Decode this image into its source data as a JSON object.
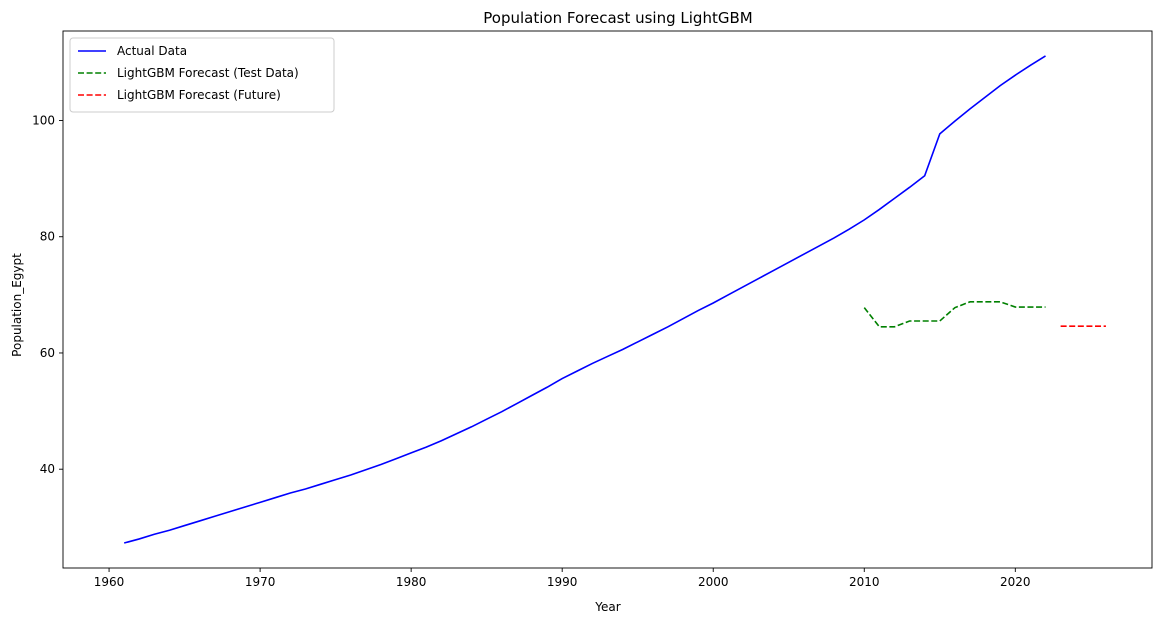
{
  "chart_data": {
    "type": "line",
    "title": "Population Forecast using LightGBM",
    "xlabel": "Year",
    "ylabel": "Population_Egypt",
    "xlim": [
      1956.95,
      2029.05
    ],
    "ylim": [
      23.0,
      115.4
    ],
    "xticks": [
      1960,
      1970,
      1980,
      1990,
      2000,
      2010,
      2020
    ],
    "yticks": [
      40,
      60,
      80,
      100
    ],
    "grid": false,
    "legend_position": "top-left",
    "series": [
      {
        "name": "Actual Data",
        "color": "#0000ff",
        "style": "solid",
        "x": [
          1961,
          1962,
          1963,
          1964,
          1965,
          1966,
          1967,
          1968,
          1969,
          1970,
          1971,
          1972,
          1973,
          1974,
          1975,
          1976,
          1977,
          1978,
          1979,
          1980,
          1981,
          1982,
          1983,
          1984,
          1985,
          1986,
          1987,
          1988,
          1989,
          1990,
          1991,
          1992,
          1993,
          1994,
          1995,
          1996,
          1997,
          1998,
          1999,
          2000,
          2001,
          2002,
          2003,
          2004,
          2005,
          2006,
          2007,
          2008,
          2009,
          2010,
          2011,
          2012,
          2013,
          2014,
          2015,
          2016,
          2017,
          2018,
          2019,
          2020,
          2021,
          2022
        ],
        "y": [
          27.3,
          28.0,
          28.8,
          29.5,
          30.3,
          31.1,
          31.9,
          32.7,
          33.5,
          34.3,
          35.1,
          35.9,
          36.6,
          37.4,
          38.2,
          39.0,
          39.9,
          40.8,
          41.8,
          42.8,
          43.8,
          44.9,
          46.1,
          47.3,
          48.6,
          49.9,
          51.3,
          52.7,
          54.1,
          55.6,
          56.9,
          58.2,
          59.4,
          60.6,
          61.9,
          63.2,
          64.5,
          65.9,
          67.3,
          68.6,
          70.0,
          71.4,
          72.8,
          74.2,
          75.6,
          77.0,
          78.4,
          79.8,
          81.3,
          82.9,
          84.7,
          86.6,
          88.5,
          90.5,
          97.7,
          99.9,
          102.0,
          104.0,
          106.0,
          107.8,
          109.5,
          111.1
        ]
      },
      {
        "name": "LightGBM Forecast (Test Data)",
        "color": "#008000",
        "style": "dashed",
        "x": [
          2010,
          2011,
          2012,
          2013,
          2014,
          2015,
          2016,
          2017,
          2018,
          2019,
          2020,
          2021,
          2022
        ],
        "y": [
          67.8,
          64.5,
          64.5,
          65.5,
          65.5,
          65.5,
          67.8,
          68.8,
          68.8,
          68.8,
          67.9,
          67.9,
          67.9
        ]
      },
      {
        "name": "LightGBM Forecast (Future)",
        "color": "#ff0000",
        "style": "dashed",
        "x": [
          2023,
          2024,
          2025,
          2026
        ],
        "y": [
          64.6,
          64.6,
          64.6,
          64.6
        ]
      }
    ]
  }
}
